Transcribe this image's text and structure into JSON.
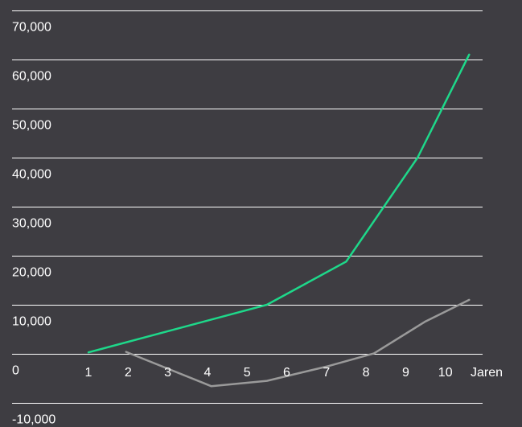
{
  "chart_data": {
    "type": "line",
    "title": "",
    "xlabel": "Jaren",
    "ylabel": "",
    "x_ticks": [
      "1",
      "2",
      "3",
      "4",
      "5",
      "6",
      "7",
      "8",
      "9",
      "10"
    ],
    "y_ticks": [
      "-10,000",
      "0",
      "10,000",
      "20,000",
      "30,000",
      "40,000",
      "50,000",
      "60,000",
      "70,000"
    ],
    "xlim": [
      0,
      10.8
    ],
    "ylim": [
      -10000,
      70000
    ],
    "grid": true,
    "legend": "none",
    "series": [
      {
        "color": "#1ed88a",
        "points": [
          [
            1,
            300
          ],
          [
            5.5,
            10000
          ],
          [
            7.5,
            18800
          ],
          [
            9.3,
            40000
          ],
          [
            10.6,
            61000
          ]
        ]
      },
      {
        "color": "#9a9a9a",
        "points": [
          [
            1.95,
            400
          ],
          [
            4.1,
            -6600
          ],
          [
            5.5,
            -5500
          ],
          [
            7,
            -2600
          ],
          [
            8.2,
            100
          ],
          [
            9.5,
            6600
          ],
          [
            10.6,
            11000
          ]
        ]
      }
    ]
  }
}
